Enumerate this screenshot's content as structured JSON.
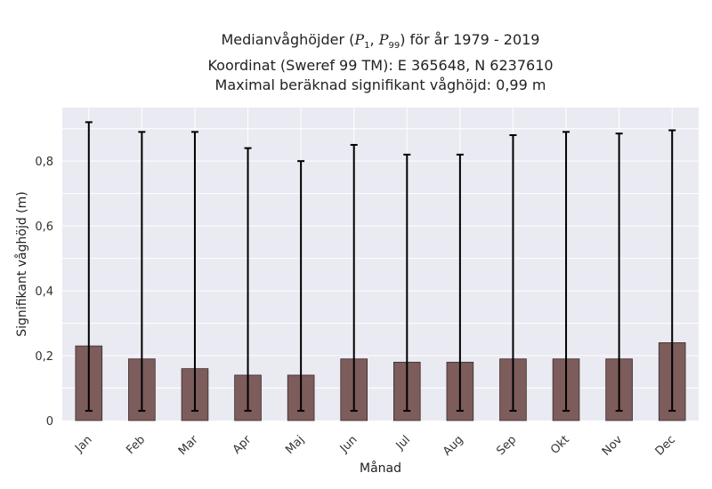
{
  "chart_data": {
    "type": "bar",
    "title_prefix": "Medianvåghöjder (",
    "title_p1": "P",
    "title_p1_sub": "1",
    "title_sep": ", ",
    "title_p2": "P",
    "title_p2_sub": "99",
    "title_suffix": ") för år 1979 - 2019",
    "subtitle_1": "Koordinat (Sweref 99 TM): E 365648, N 6237610",
    "subtitle_2": "Maximal beräknad signifikant våghöjd: 0,99 m",
    "xlabel": "Månad",
    "ylabel": "Signifikant våghöjd (m)",
    "categories": [
      "Jan",
      "Feb",
      "Mar",
      "Apr",
      "Maj",
      "Jun",
      "Jul",
      "Aug",
      "Sep",
      "Okt",
      "Nov",
      "Dec"
    ],
    "values": [
      0.23,
      0.19,
      0.16,
      0.14,
      0.14,
      0.19,
      0.18,
      0.18,
      0.19,
      0.19,
      0.19,
      0.24
    ],
    "lower": [
      0.03,
      0.03,
      0.03,
      0.03,
      0.03,
      0.03,
      0.03,
      0.03,
      0.03,
      0.03,
      0.03,
      0.03
    ],
    "upper": [
      0.92,
      0.89,
      0.89,
      0.84,
      0.8,
      0.85,
      0.82,
      0.82,
      0.88,
      0.89,
      0.885,
      0.895
    ],
    "yticks": [
      0,
      0.2,
      0.4,
      0.6,
      0.8
    ],
    "ytick_labels": [
      "0",
      "0,2",
      "0,4",
      "0,6",
      "0,8"
    ],
    "ylim": [
      0,
      0.965
    ],
    "grid": true,
    "colors": {
      "bar": "#7d5c5c",
      "bar_edge": "#3a2a2a",
      "plot_bg": "#eaeaf2",
      "grid": "#ffffff",
      "errorbar": "#000000"
    }
  }
}
